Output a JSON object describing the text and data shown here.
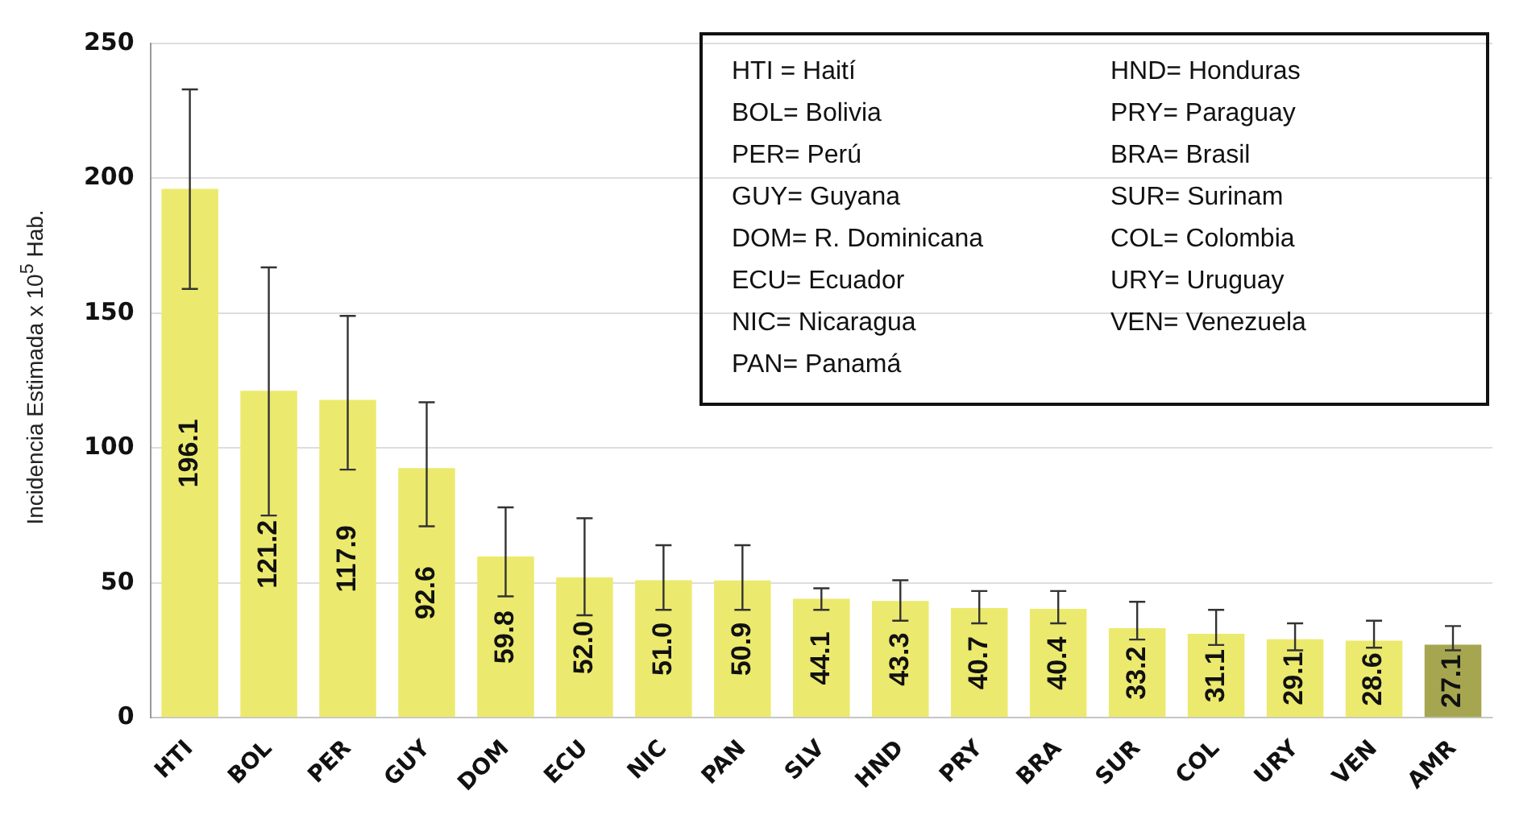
{
  "chart_data": {
    "type": "bar",
    "ylabel": "Incidencia Estimada x 10$^{5}$ Hab.",
    "categories": [
      "HTI",
      "BOL",
      "PER",
      "GUY",
      "DOM",
      "ECU",
      "NIC",
      "PAN",
      "SLV",
      "HND",
      "PRY",
      "BRA",
      "SUR",
      "COL",
      "URY",
      "VEN",
      "AMR"
    ],
    "values": [
      196.1,
      121.2,
      117.9,
      92.6,
      59.8,
      52.0,
      51.0,
      50.9,
      44.1,
      43.3,
      40.7,
      40.4,
      33.2,
      31.1,
      29.1,
      28.6,
      27.1
    ],
    "colors": [
      "#ecea6e",
      "#ecea6e",
      "#ecea6e",
      "#ecea6e",
      "#ecea6e",
      "#ecea6e",
      "#ecea6e",
      "#ecea6e",
      "#ecea6e",
      "#ecea6e",
      "#ecea6e",
      "#ecea6e",
      "#ecea6e",
      "#ecea6e",
      "#ecea6e",
      "#ecea6e",
      "#a6a650"
    ],
    "errors": [
      [
        159,
        233
      ],
      [
        75,
        167
      ],
      [
        92,
        149
      ],
      [
        71,
        117
      ],
      [
        45,
        78
      ],
      [
        38,
        74
      ],
      [
        40,
        64
      ],
      [
        40,
        64
      ],
      [
        40,
        48
      ],
      [
        36,
        51
      ],
      [
        35,
        47
      ],
      [
        35,
        47
      ],
      [
        29,
        43
      ],
      [
        27,
        40
      ],
      [
        25,
        35
      ],
      [
        26,
        36
      ],
      [
        25,
        34
      ]
    ],
    "value_labels": [
      "196.1",
      "121.2",
      "117.9",
      "92.6",
      "59.8",
      "52.0",
      "51.0",
      "50.9",
      "44.1",
      "43.3",
      "40.7",
      "40.4",
      "33.2",
      "31.1",
      "29.1",
      "28.6",
      "27.1"
    ],
    "ylim": [
      0,
      250
    ],
    "yticks": [
      0,
      50,
      100,
      150,
      200,
      250
    ],
    "grid": "y",
    "annotations": [
      "HTI = Haití",
      "BOL= Bolivia",
      "PER= Perú",
      "GUY= Guyana",
      "DOM= R. Dominicana",
      "ECU= Ecuador",
      "NIC= Nicaragua",
      "PAN= Panamá",
      "HND= Honduras",
      "PRY= Paraguay",
      "BRA= Brasil",
      "SUR= Surinam",
      "COL= Colombia",
      "URY= Uruguay",
      "VEN= Venezuela"
    ]
  }
}
